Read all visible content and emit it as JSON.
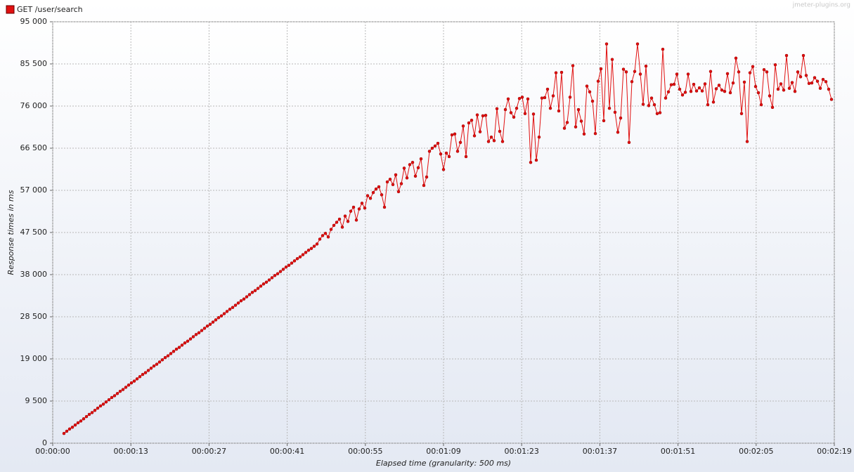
{
  "chart_data": {
    "type": "line",
    "legend": "top-left",
    "watermark": "jmeter-plugins.org",
    "xlabel": "Elapsed time (granularity: 500 ms)",
    "ylabel": "Response times in ms",
    "xlim": [
      0,
      139
    ],
    "ylim": [
      0,
      95000
    ],
    "grid": true,
    "yticks": [
      0,
      {
        "value": 9500,
        "label": "9 500"
      },
      {
        "value": 19000,
        "label": "19 000"
      },
      {
        "value": 28500,
        "label": "28 500"
      },
      {
        "value": 38000,
        "label": "38 000"
      },
      {
        "value": 47500,
        "label": "47 500"
      },
      {
        "value": 57000,
        "label": "57 000"
      },
      {
        "value": 66500,
        "label": "66 500"
      },
      {
        "value": 76000,
        "label": "76 000"
      },
      {
        "value": 85500,
        "label": "85 500"
      },
      {
        "value": 95000,
        "label": "95 000"
      }
    ],
    "xticks": [
      {
        "value": 0,
        "label": "00:00:00"
      },
      {
        "value": 13.9,
        "label": "00:00:13"
      },
      {
        "value": 27.8,
        "label": "00:00:27"
      },
      {
        "value": 41.7,
        "label": "00:00:41"
      },
      {
        "value": 55.6,
        "label": "00:00:55"
      },
      {
        "value": 69.5,
        "label": "00:01:09"
      },
      {
        "value": 83.4,
        "label": "00:01:23"
      },
      {
        "value": 97.3,
        "label": "00:01:37"
      },
      {
        "value": 111.2,
        "label": "00:01:51"
      },
      {
        "value": 125.1,
        "label": "00:02:05"
      },
      {
        "value": 139,
        "label": "00:02:19"
      }
    ],
    "x": [
      2,
      2.5,
      3,
      3.5,
      4,
      4.5,
      5,
      5.5,
      6,
      6.5,
      7,
      7.5,
      8,
      8.5,
      9,
      9.5,
      10,
      10.5,
      11,
      11.5,
      12,
      12.5,
      13,
      13.5,
      14,
      14.5,
      15,
      15.5,
      16,
      16.5,
      17,
      17.5,
      18,
      18.5,
      19,
      19.5,
      20,
      20.5,
      21,
      21.5,
      22,
      22.5,
      23,
      23.5,
      24,
      24.5,
      25,
      25.5,
      26,
      26.5,
      27,
      27.5,
      28,
      28.5,
      29,
      29.5,
      30,
      30.5,
      31,
      31.5,
      32,
      32.5,
      33,
      33.5,
      34,
      34.5,
      35,
      35.5,
      36,
      36.5,
      37,
      37.5,
      38,
      38.5,
      39,
      39.5,
      40,
      40.5,
      41,
      41.5,
      42,
      42.5,
      43,
      43.5,
      44,
      44.5,
      45,
      45.5,
      46,
      46.5,
      47,
      47.5,
      48,
      48.5,
      49,
      49.5,
      50,
      50.5,
      51,
      51.5,
      52,
      52.5,
      53,
      53.5,
      54,
      54.5,
      55,
      55.5,
      56,
      56.5,
      57,
      57.5,
      58,
      58.5,
      59,
      59.5,
      60,
      60.5,
      61,
      61.5,
      62,
      62.5,
      63,
      63.5,
      64,
      64.5,
      65,
      65.5,
      66,
      66.5,
      67,
      67.5,
      68,
      68.5,
      69,
      69.5,
      70,
      70.5,
      71,
      71.5,
      72,
      72.5,
      73,
      73.5,
      74,
      74.5,
      75,
      75.5,
      76,
      76.5,
      77,
      77.5,
      78,
      78.5,
      79,
      79.5,
      80,
      80.5,
      81,
      81.5,
      82,
      82.5,
      83,
      83.5,
      84,
      84.5,
      85,
      85.5,
      86,
      86.5,
      87,
      87.5,
      88,
      88.5,
      89,
      89.5,
      90,
      90.5,
      91,
      91.5,
      92,
      92.5,
      93,
      93.5,
      94,
      94.5,
      95,
      95.5,
      96,
      96.5,
      97,
      97.5,
      98,
      98.5,
      99,
      99.5,
      100,
      100.5,
      101,
      101.5,
      102,
      102.5,
      103,
      103.5,
      104,
      104.5,
      105,
      105.5,
      106,
      106.5,
      107,
      107.5,
      108,
      108.5,
      109,
      109.5,
      110,
      110.5,
      111,
      111.5,
      112,
      112.5,
      113,
      113.5,
      114,
      114.5,
      115,
      115.5,
      116,
      116.5,
      117,
      117.5,
      118,
      118.5,
      119,
      119.5,
      120,
      120.5,
      121,
      121.5,
      122,
      122.5,
      123,
      123.5,
      124,
      124.5,
      125,
      125.5,
      126,
      126.5,
      127,
      127.5,
      128,
      128.5,
      129,
      129.5,
      130,
      130.5,
      131,
      131.5,
      132,
      132.5,
      133,
      133.5,
      134,
      134.5,
      135,
      135.5,
      136,
      136.5,
      137,
      137.5,
      138,
      138.5
    ],
    "series": [
      {
        "name": "GET /user/search",
        "color": "#e01010",
        "values": [
          2200,
          2700,
          3200,
          3600,
          4100,
          4600,
          5000,
          5500,
          6000,
          6500,
          6900,
          7400,
          7900,
          8400,
          8800,
          9300,
          9800,
          10300,
          10700,
          11200,
          11700,
          12100,
          12600,
          13100,
          13600,
          14000,
          14500,
          15000,
          15500,
          15900,
          16400,
          16900,
          17400,
          17800,
          18300,
          18800,
          19300,
          19700,
          20200,
          20700,
          21200,
          21600,
          22100,
          22600,
          23000,
          23500,
          24000,
          24500,
          24900,
          25400,
          25900,
          26400,
          26800,
          27300,
          27800,
          28300,
          28700,
          29200,
          29700,
          30200,
          30600,
          31100,
          31600,
          32100,
          32500,
          33000,
          33500,
          34000,
          34400,
          34900,
          35400,
          35900,
          36300,
          36800,
          37300,
          37800,
          38200,
          38700,
          39200,
          39700,
          40100,
          40600,
          41100,
          41600,
          42000,
          42500,
          43000,
          43500,
          43900,
          44400,
          44900,
          46000,
          46800,
          47300,
          46500,
          48200,
          49100,
          49800,
          50500,
          48700,
          51200,
          50000,
          52300,
          53200,
          50300,
          52800,
          54100,
          53000,
          55800,
          55200,
          56500,
          57300,
          57800,
          56000,
          53200,
          58900,
          59500,
          58300,
          60500,
          56700,
          58500,
          62000,
          59800,
          62800,
          63300,
          60200,
          62100,
          64100,
          58100,
          60000,
          65800,
          66500,
          67000,
          67600,
          65200,
          61700,
          65400,
          64600,
          69500,
          69700,
          65800,
          67800,
          71500,
          64600,
          72200,
          72800,
          69300,
          74000,
          70200,
          73800,
          73900,
          68000,
          69000,
          68200,
          75400,
          70300,
          68000,
          75200,
          77600,
          74500,
          73500,
          75500,
          77700,
          78000,
          74300,
          77600,
          63300,
          74200,
          63800,
          69000,
          77800,
          77900,
          79800,
          75500,
          78300,
          83500,
          74900,
          83600,
          71000,
          72300,
          78000,
          85100,
          71300,
          75200,
          72600,
          69700,
          80500,
          79200,
          77100,
          69800,
          81600,
          84400,
          72700,
          90000,
          75500,
          86500,
          74600,
          70100,
          73300,
          84300,
          83700,
          67800,
          81500,
          83800,
          90000,
          83200,
          76400,
          85000,
          76100,
          77800,
          76300,
          74300,
          74500,
          88800,
          77800,
          79200,
          80800,
          80900,
          83200,
          79800,
          78500,
          79100,
          83200,
          79300,
          80900,
          79400,
          80100,
          79400,
          81000,
          76300,
          83800,
          76900,
          79900,
          80700,
          79600,
          79300,
          83300,
          79000,
          81200,
          86800,
          83700,
          74300,
          81400,
          68000,
          83500,
          84900,
          80400,
          79000,
          76300,
          84200,
          83700,
          78300,
          75700,
          85300,
          79800,
          81000,
          79600,
          87400,
          80000,
          81300,
          79300,
          83700,
          82600,
          87400,
          82900,
          81100,
          81200,
          82400,
          81600,
          80000,
          82000,
          81500,
          79800,
          77500
        ]
      }
    ]
  }
}
